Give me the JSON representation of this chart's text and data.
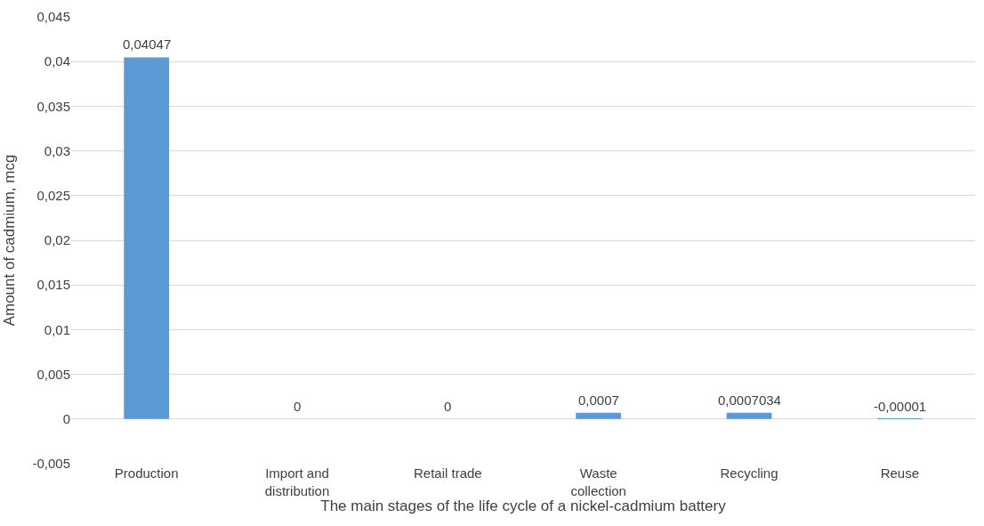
{
  "chart_data": {
    "type": "bar",
    "xlabel": "The main stages of the life cycle of a nickel-cadmium battery",
    "ylabel": "Amount of cadmium, mcg",
    "categories": [
      "Production",
      "Import and distribution",
      "Retail trade",
      "Waste collection",
      "Recycling",
      "Reuse"
    ],
    "values": [
      0.04047,
      0,
      0,
      0.0007,
      0.0007034,
      -1e-05
    ],
    "value_labels": [
      "0,04047",
      "0",
      "0",
      "0,0007",
      "0,0007034",
      "-0,00001"
    ],
    "color": "#5b9bd5",
    "ylim": [
      -0.005,
      0.045
    ],
    "yticks": [
      {
        "value": -0.005,
        "label": "-0,005"
      },
      {
        "value": 0,
        "label": "0"
      },
      {
        "value": 0.005,
        "label": "0,005"
      },
      {
        "value": 0.01,
        "label": "0,01"
      },
      {
        "value": 0.015,
        "label": "0,015"
      },
      {
        "value": 0.02,
        "label": "0,02"
      },
      {
        "value": 0.025,
        "label": "0,025"
      },
      {
        "value": 0.03,
        "label": "0,03"
      },
      {
        "value": 0.035,
        "label": "0,035"
      },
      {
        "value": 0.04,
        "label": "0,04"
      },
      {
        "value": 0.045,
        "label": "0,045"
      }
    ],
    "grid": "y"
  }
}
